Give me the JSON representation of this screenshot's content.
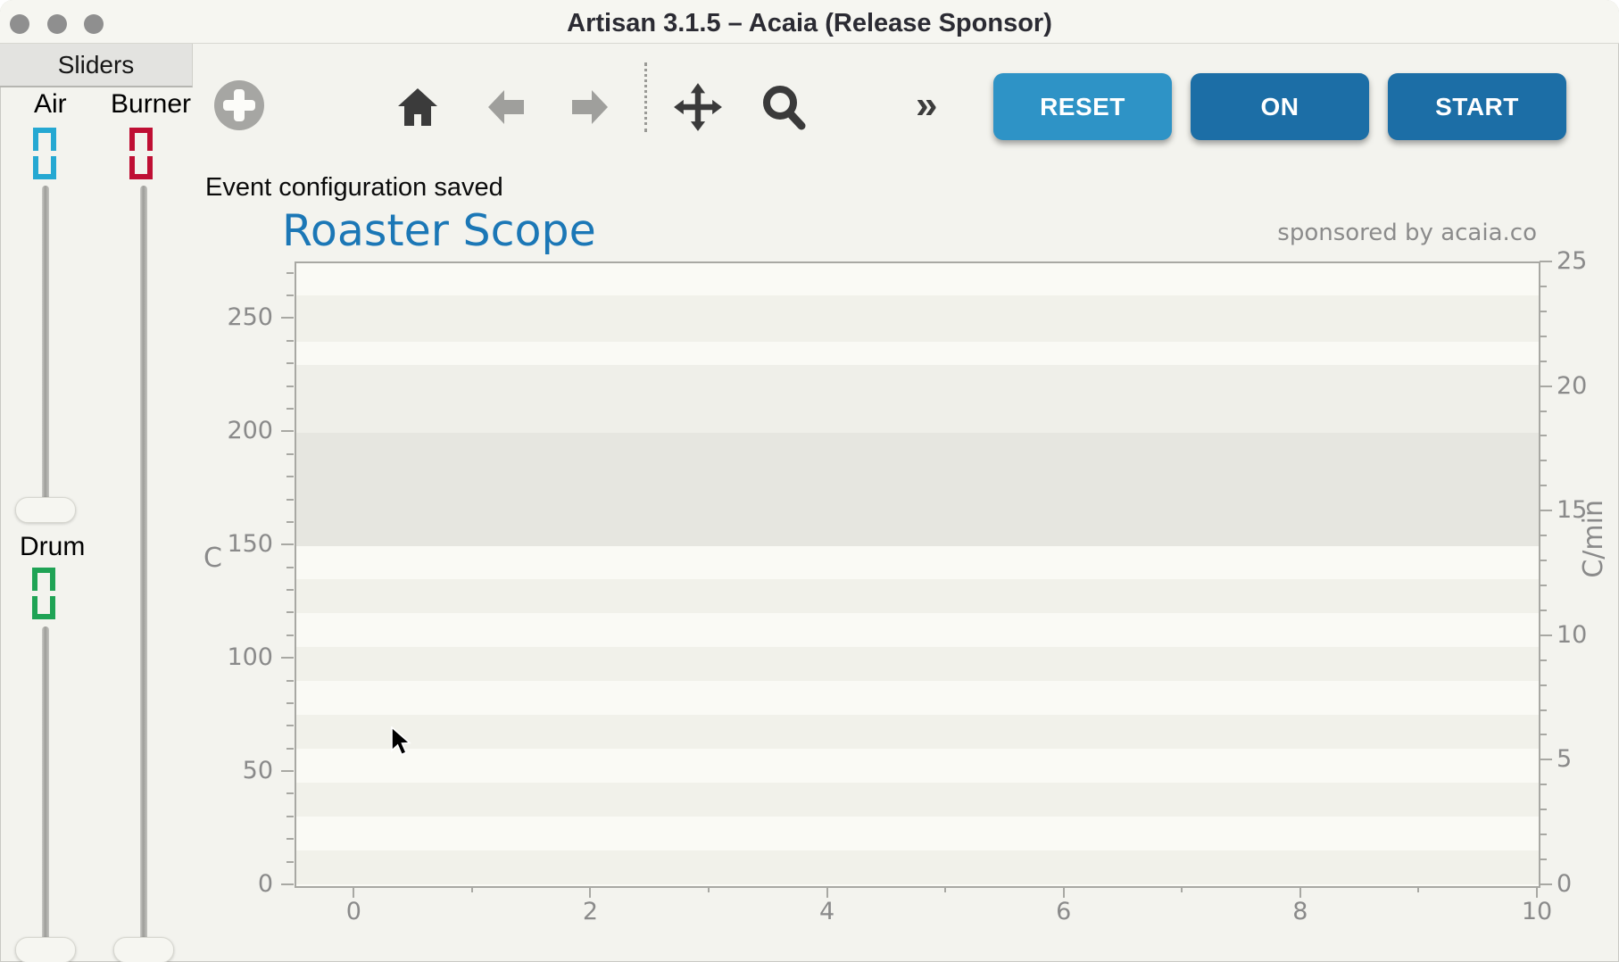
{
  "window": {
    "title": "Artisan 3.1.5 – Acaia (Release Sponsor)"
  },
  "sliders_panel": {
    "header": "Sliders",
    "air": {
      "label": "Air",
      "value": "0",
      "color": "#25a8d2"
    },
    "burner": {
      "label": "Burner",
      "value": "0",
      "color": "#bf0f34"
    },
    "drum": {
      "label": "Drum",
      "value": "0",
      "color": "#1fa355"
    }
  },
  "toolbar": {
    "icons": [
      "add-circle-icon",
      "home-icon",
      "back-arrow-icon",
      "forward-arrow-icon",
      "pan-move-icon",
      "zoom-magnifier-icon"
    ],
    "more_label": "»",
    "buttons": [
      {
        "label": "RESET",
        "color": "#2e93c6"
      },
      {
        "label": "ON",
        "color": "#1c6ea6"
      },
      {
        "label": "START",
        "color": "#1c6ea6"
      }
    ]
  },
  "status_message": "Event configuration saved",
  "chart_data": {
    "type": "line",
    "title": "Roaster Scope",
    "title_color": "#1b77b6",
    "sponsor_note": "sponsored by acaia.co",
    "series": [],
    "grid": false,
    "legend": null,
    "x_axis": {
      "label": "",
      "range": [
        -0.5,
        10
      ],
      "major_ticks": [
        0,
        2,
        4,
        6,
        8,
        10
      ],
      "minor_step": 1
    },
    "left_axis": {
      "label": "C",
      "range": [
        0,
        275
      ],
      "major_ticks": [
        0,
        50,
        100,
        150,
        200,
        250
      ],
      "minor_step": 10
    },
    "right_axis": {
      "label": "C/min",
      "range": [
        0,
        25
      ],
      "major_ticks": [
        0,
        5,
        10,
        15,
        20,
        25
      ],
      "minor_step": 1
    },
    "bands": [
      {
        "from": 150,
        "to": 200,
        "color": "#e6e6e0"
      },
      {
        "from": 200,
        "to": 230,
        "color": "#efefe9"
      }
    ]
  }
}
